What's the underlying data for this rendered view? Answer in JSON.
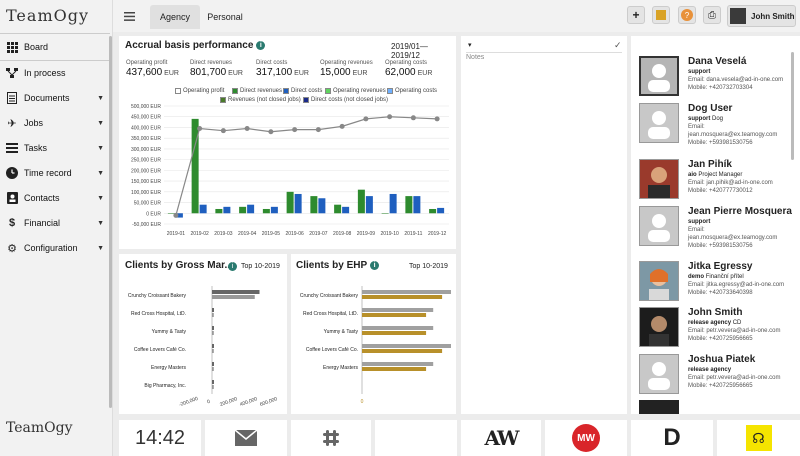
{
  "app": {
    "logo": "TeamOgy",
    "logo_bottom": "TeamOgy"
  },
  "sidebar": {
    "items": [
      {
        "label": "Board",
        "icon": "grid-icon",
        "has_chevron": false
      },
      {
        "label": "In process",
        "icon": "flow-icon",
        "has_chevron": false
      },
      {
        "label": "Documents",
        "icon": "document-icon",
        "has_chevron": true
      },
      {
        "label": "Jobs",
        "icon": "rocket-icon",
        "has_chevron": true
      },
      {
        "label": "Tasks",
        "icon": "tasks-icon",
        "has_chevron": true
      },
      {
        "label": "Time record",
        "icon": "clock-icon",
        "has_chevron": true
      },
      {
        "label": "Contacts",
        "icon": "contacts-icon",
        "has_chevron": true
      },
      {
        "label": "Financial",
        "icon": "dollar-icon",
        "has_chevron": true
      },
      {
        "label": "Configuration",
        "icon": "gear-icon",
        "has_chevron": true
      }
    ]
  },
  "topbar": {
    "tabs": [
      {
        "label": "Agency",
        "active": true
      },
      {
        "label": "Personal",
        "active": false
      }
    ],
    "user_name": "John Smith"
  },
  "accrual": {
    "title": "Accrual basis performance",
    "period": "2019/01—2019/12",
    "kpis": [
      {
        "label": "Operating profit",
        "value": "437,600",
        "unit": "EUR"
      },
      {
        "label": "Direct revenues",
        "value": "801,700",
        "unit": "EUR"
      },
      {
        "label": "Direct costs",
        "value": "317,100",
        "unit": "EUR"
      },
      {
        "label": "Operating revenues",
        "value": "15,000",
        "unit": "EUR"
      },
      {
        "label": "Operating costs",
        "value": "62,000",
        "unit": "EUR"
      }
    ],
    "legend": [
      {
        "label": "Operating profit",
        "color": "#ffffff"
      },
      {
        "label": "Direct revenues",
        "color": "#2e8b2e"
      },
      {
        "label": "Direct costs",
        "color": "#1f5fbf"
      },
      {
        "label": "Operating revenues",
        "color": "#5fd35f"
      },
      {
        "label": "Operating costs",
        "color": "#6fb0ff"
      },
      {
        "label": "Revenues (not closed jobs)",
        "color": "#4a7a2a"
      },
      {
        "label": "Direct costs (not closed jobs)",
        "color": "#1a2a8a"
      }
    ]
  },
  "chart_data": [
    {
      "type": "bar",
      "title": "Accrual basis performance",
      "categories": [
        "2019-01",
        "2019-02",
        "2019-03",
        "2019-04",
        "2019-05",
        "2019-06",
        "2019-07",
        "2019-08",
        "2019-09",
        "2019-10",
        "2019-11",
        "2019-12"
      ],
      "series": [
        {
          "name": "Direct revenues",
          "values": [
            0,
            440000,
            20000,
            30000,
            20000,
            100000,
            80000,
            40000,
            110000,
            0,
            80000,
            20000
          ]
        },
        {
          "name": "Direct costs",
          "values": [
            -20000,
            40000,
            30000,
            40000,
            30000,
            90000,
            70000,
            30000,
            80000,
            90000,
            80000,
            25000
          ]
        },
        {
          "name": "Operating profit",
          "values": [
            -10000,
            395000,
            385000,
            395000,
            380000,
            390000,
            390000,
            405000,
            440000,
            450000,
            445000,
            440000
          ]
        }
      ],
      "ylim": [
        -50000,
        500000
      ],
      "yticks": [
        "-50,000 EUR",
        "0 EUR",
        "50,000 EUR",
        "100,000 EUR",
        "150,000 EUR",
        "200,000 EUR",
        "250,000 EUR",
        "300,000 EUR",
        "350,000 EUR",
        "400,000 EUR",
        "450,000 EUR",
        "500,000 EUR"
      ]
    },
    {
      "type": "bar",
      "title": "Clients by Gross Mar...",
      "categories": [
        "Crunchy Croissant Bakery",
        "Red Cross Hospital, LtD.",
        "Yummy & Tasty",
        "Coffee Lovers Café Co.",
        "Energy Masters",
        "Big Pharmacy, Inc."
      ],
      "series": [
        {
          "name": "",
          "values": [
            500000,
            10000,
            8000,
            8000,
            8000,
            5000
          ]
        }
      ],
      "xticks": [
        "-200,000",
        "0",
        "200,000",
        "400,000",
        "600,000"
      ]
    },
    {
      "type": "bar",
      "title": "Clients by EHP",
      "categories": [
        "Crunchy Croissant Bakery",
        "Red Cross Hospital, LtD.",
        "Yummy & Tasty",
        "Coffee Lovers Café Co.",
        "Energy Masters"
      ],
      "series": [
        {
          "name": "",
          "values": [
            100,
            80,
            80,
            100,
            80
          ]
        }
      ],
      "xticks": [
        "0"
      ]
    }
  ],
  "gross": {
    "title": "Clients by Gross Mar...",
    "period": "Top 10-2019"
  },
  "ehp": {
    "title": "Clients by EHP",
    "period": "Top 10-2019"
  },
  "notes": {
    "placeholder": "Notes"
  },
  "contacts": [
    {
      "name": "Dana Veselá",
      "role": "support",
      "role_detail": "",
      "email": "Email: dana.vesela@ad-in-one.com",
      "mobile": "Mobile: +420732703304"
    },
    {
      "name": "Dog User",
      "role": "support",
      "role_detail": "Dog",
      "email": "Email:",
      "mobile": "jean.mosquera@ex.teamogy.com"
    },
    {
      "name": "Jan Pihík",
      "role": "aio",
      "role_detail": "Project Manager",
      "email": "Email: jan.pihik@ad-in-one.com",
      "mobile": "Mobile: +420777730012"
    },
    {
      "name": "Jean Pierre Mosquera",
      "role": "support",
      "role_detail": "",
      "email": "Email:",
      "mobile": "jean.mosquera@ex.teamogy.com"
    },
    {
      "name": "Jitka Egressy",
      "role": "demo",
      "role_detail": "Finanční přítel",
      "email": "Email: jitka.egressy@ad-in-one.com",
      "mobile": "Mobile: +420733640398"
    },
    {
      "name": "John Smith",
      "role": "release agency",
      "role_detail": "CD",
      "email": "Email: petr.vevera@ad-in-one.com",
      "mobile": "Mobile: +420725956665"
    },
    {
      "name": "Joshua Piatek",
      "role": "release agency",
      "role_detail": "",
      "email": "Email: petr.vevera@ad-in-one.com",
      "mobile": "Mobile: +420725956665"
    }
  ],
  "contacts_extra": {
    "mobile_dog": "Mobile: +593981530756",
    "mobile_jean": "Mobile: +593981530756"
  },
  "tiles": {
    "clock": "14:42",
    "aw": "AW",
    "mw": "MW",
    "d": "D"
  }
}
